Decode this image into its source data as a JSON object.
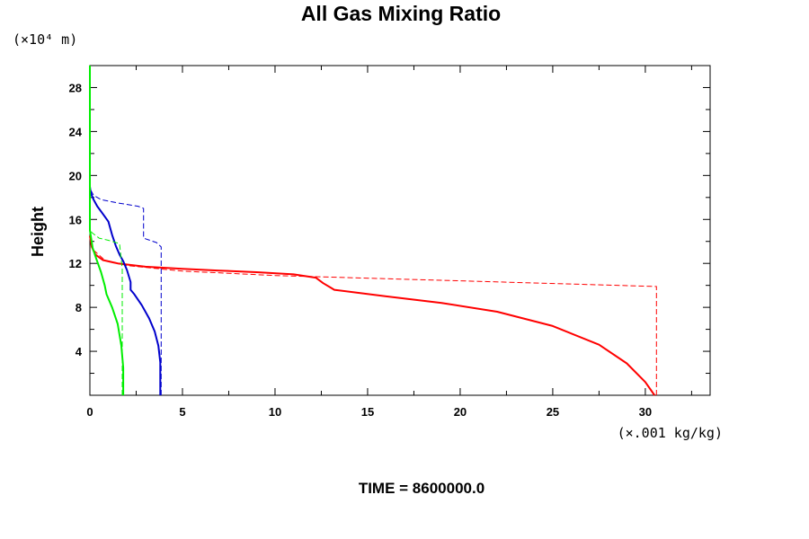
{
  "chart_data": {
    "type": "line",
    "title": "All Gas Mixing Ratio",
    "ylabel": "Height",
    "y_unit_label": "(×10⁴ m)",
    "x_unit_label": "(×.001 kg/kg)",
    "time_label": "TIME = 8600000.0",
    "xlim": [
      0,
      33.5
    ],
    "ylim": [
      0,
      30
    ],
    "x_ticks": [
      0,
      5,
      10,
      15,
      20,
      25,
      30
    ],
    "y_ticks": [
      4,
      8,
      12,
      16,
      20,
      24,
      28
    ],
    "grid": false,
    "series": [
      {
        "color": "#ff0000",
        "style": "solid",
        "x": [
          30.5,
          30.0,
          29.0,
          27.5,
          25.0,
          22.0,
          19.0,
          16.0,
          13.2,
          13.0,
          12.6,
          12.2,
          11.0,
          9.0,
          7.0,
          5.0,
          3.0,
          1.5,
          0.7,
          0.3,
          0.1,
          0.0
        ],
        "y": [
          0.0,
          1.2,
          2.9,
          4.6,
          6.3,
          7.6,
          8.4,
          9.0,
          9.6,
          9.8,
          10.2,
          10.7,
          11.0,
          11.2,
          11.35,
          11.5,
          11.7,
          12.0,
          12.3,
          12.8,
          13.5,
          14.5
        ]
      },
      {
        "color": "#ff0000",
        "style": "dashed",
        "x": [
          30.6,
          30.6,
          10.0,
          5.0,
          2.0,
          0.8,
          0.2,
          0.0
        ],
        "y": [
          0.0,
          9.9,
          10.9,
          11.3,
          11.8,
          12.3,
          13.2,
          14.5
        ]
      },
      {
        "color": "#0000cc",
        "style": "solid",
        "x": [
          3.8,
          3.8,
          3.7,
          3.5,
          3.2,
          2.8,
          2.4,
          2.2,
          2.2,
          2.0,
          1.8,
          1.6,
          1.4,
          1.2,
          1.0,
          0.7,
          0.4,
          0.2,
          0.05,
          0.0
        ],
        "y": [
          0.0,
          3.0,
          4.5,
          5.8,
          7.0,
          8.2,
          9.2,
          9.6,
          10.3,
          11.4,
          12.2,
          12.8,
          13.6,
          14.6,
          15.8,
          16.5,
          17.2,
          17.8,
          18.4,
          19.0
        ]
      },
      {
        "color": "#0000cc",
        "style": "dashed",
        "x": [
          3.85,
          3.85,
          3.6,
          2.9,
          2.9,
          2.6,
          1.5,
          0.6,
          0.2,
          0.0
        ],
        "y": [
          0.0,
          13.5,
          13.9,
          14.3,
          17.0,
          17.2,
          17.5,
          17.8,
          18.2,
          18.8
        ]
      },
      {
        "color": "#00ee00",
        "style": "solid",
        "x": [
          1.8,
          1.8,
          1.7,
          1.5,
          1.2,
          0.9,
          0.8,
          0.6,
          0.35,
          0.15,
          0.05,
          0.0,
          0.0
        ],
        "y": [
          0.0,
          2.5,
          4.5,
          6.5,
          8.0,
          9.2,
          10.0,
          11.2,
          12.4,
          13.4,
          14.5,
          15.0,
          30.0
        ]
      },
      {
        "color": "#00ee00",
        "style": "dashed",
        "x": [
          1.75,
          1.75,
          1.6,
          1.0,
          0.5,
          0.1,
          0.0
        ],
        "y": [
          0.0,
          11.5,
          13.8,
          14.1,
          14.3,
          14.8,
          15.2
        ]
      }
    ]
  }
}
